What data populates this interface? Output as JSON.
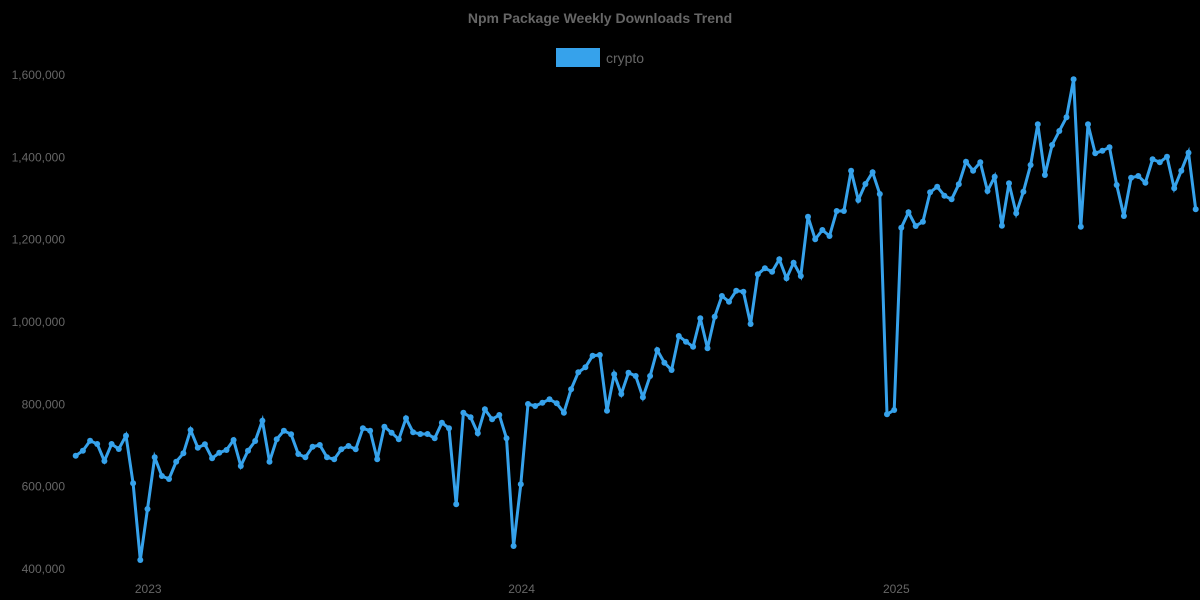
{
  "chart_data": {
    "type": "line",
    "title": "Npm Package Weekly Downloads Trend",
    "xlabel": "",
    "ylabel": "",
    "ylim": [
      400000,
      1600000
    ],
    "grid": false,
    "legend_position": "top",
    "y_ticks": [
      {
        "value": 400000,
        "label": "400,000"
      },
      {
        "value": 600000,
        "label": "600,000"
      },
      {
        "value": 800000,
        "label": "800,000"
      },
      {
        "value": 1000000,
        "label": "1,000,000"
      },
      {
        "value": 1200000,
        "label": "1,200,000"
      },
      {
        "value": 1400000,
        "label": "1,400,000"
      },
      {
        "value": 1600000,
        "label": "1,600,000"
      }
    ],
    "x_ticks": [
      {
        "index": 10.1,
        "label": "2023"
      },
      {
        "index": 62.1,
        "label": "2024"
      },
      {
        "index": 114.3,
        "label": "2025"
      }
    ],
    "series": [
      {
        "name": "crypto",
        "color": "#36A2EB",
        "values": [
          675200,
          687400,
          711700,
          703600,
          662400,
          703600,
          691500,
          723800,
          608200,
          421900,
          545800,
          671300,
          625900,
          618600,
          660700,
          681100,
          737700,
          694700,
          702900,
          668900,
          682500,
          689100,
          713400,
          650200,
          687400,
          710900,
          760300,
          660700,
          715100,
          736000,
          727200,
          679400,
          671300,
          697100,
          701200,
          671300,
          666500,
          690800,
          698800,
          690800,
          741800,
          736000,
          666500,
          745700,
          731100,
          715100,
          766100,
          732100,
          728000,
          728000,
          717500,
          755400,
          741800,
          557200,
          779700,
          768500,
          729600,
          788000,
          763600,
          774100,
          717500,
          455900,
          605800,
          800800,
          796000,
          804000,
          812200,
          802500,
          779700,
          836500,
          877800,
          890000,
          918100,
          919800,
          784500,
          873000,
          825100,
          876900,
          868800,
          817100,
          868800,
          932000,
          901100,
          883400,
          966000,
          952200,
          940000,
          1009000,
          936100,
          1012900,
          1063200,
          1049300,
          1076100,
          1073600,
          995200,
          1116000,
          1130400,
          1122200,
          1152300,
          1106200,
          1144100,
          1111800,
          1255800,
          1200900,
          1223500,
          1208900,
          1269700,
          1269700,
          1367500,
          1296400,
          1335200,
          1363700,
          1311000,
          775800,
          786200,
          1229100,
          1266500,
          1233200,
          1243700,
          1315100,
          1328700,
          1306800,
          1298100,
          1334500,
          1389400,
          1367500,
          1387900,
          1318200,
          1353000,
          1233900,
          1336900,
          1264100,
          1316600,
          1381400,
          1480300,
          1357100,
          1430000,
          1464000,
          1497300,
          1589600,
          1231500,
          1480300,
          1409800,
          1416100,
          1424400,
          1332800,
          1257500,
          1350500,
          1354700,
          1338400,
          1395200,
          1387900,
          1401600,
          1324800,
          1367500,
          1411300,
          1273800
        ]
      }
    ]
  },
  "legend": {
    "items": [
      {
        "label": "crypto",
        "color": "#36A2EB"
      }
    ]
  }
}
